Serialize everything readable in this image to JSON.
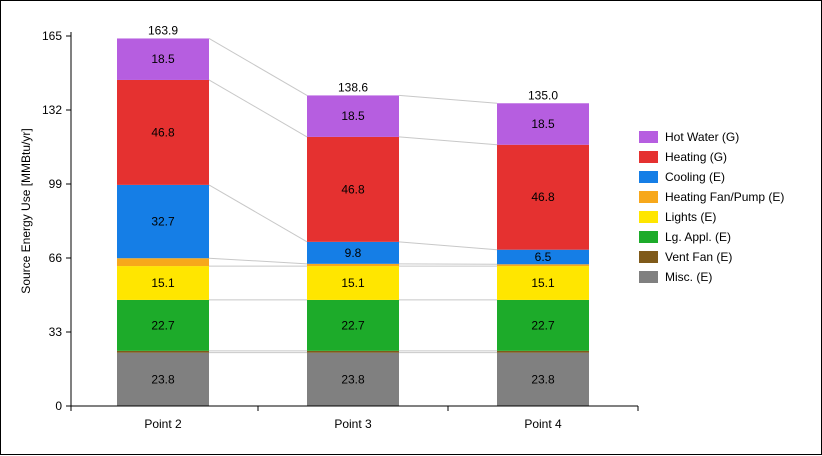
{
  "chart_data": {
    "type": "bar",
    "stacked": true,
    "categories": [
      "Point 2",
      "Point 3",
      "Point 4"
    ],
    "ylabel": "Source Energy Use [MMBtu/yr]",
    "xlabel": "",
    "ylim": [
      0,
      165
    ],
    "yticks": [
      0,
      33,
      66,
      99,
      132,
      165
    ],
    "totals": [
      "163.9",
      "138.6",
      "135.0"
    ],
    "legend_position": "right",
    "series": [
      {
        "name": "Misc. (E)",
        "color": "#808080",
        "values": [
          23.8,
          23.8,
          23.8
        ],
        "labels": [
          "23.8",
          "23.8",
          "23.8"
        ]
      },
      {
        "name": "Vent Fan (E)",
        "color": "#7f5a1a",
        "values": [
          0.8,
          0.8,
          0.8
        ],
        "labels": [
          "",
          "",
          ""
        ]
      },
      {
        "name": "Lg. Appl. (E)",
        "color": "#1dab2a",
        "values": [
          22.7,
          22.7,
          22.7
        ],
        "labels": [
          "22.7",
          "22.7",
          "22.7"
        ]
      },
      {
        "name": "Lights (E)",
        "color": "#ffe600",
        "values": [
          15.1,
          15.1,
          15.1
        ],
        "labels": [
          "15.1",
          "15.1",
          "15.1"
        ]
      },
      {
        "name": "Heating Fan/Pump (E)",
        "color": "#f7a81b",
        "values": [
          3.5,
          1.0,
          0.8
        ],
        "labels": [
          "",
          "",
          ""
        ]
      },
      {
        "name": "Cooling (E)",
        "color": "#157ee6",
        "values": [
          32.7,
          9.8,
          6.5
        ],
        "labels": [
          "32.7",
          "9.8",
          "6.5"
        ]
      },
      {
        "name": "Heating (G)",
        "color": "#e53130",
        "values": [
          46.8,
          46.8,
          46.8
        ],
        "labels": [
          "46.8",
          "46.8",
          "46.8"
        ]
      },
      {
        "name": "Hot Water (G)",
        "color": "#b65ee0",
        "values": [
          18.5,
          18.5,
          18.5
        ],
        "labels": [
          "18.5",
          "18.5",
          "18.5"
        ]
      }
    ]
  }
}
